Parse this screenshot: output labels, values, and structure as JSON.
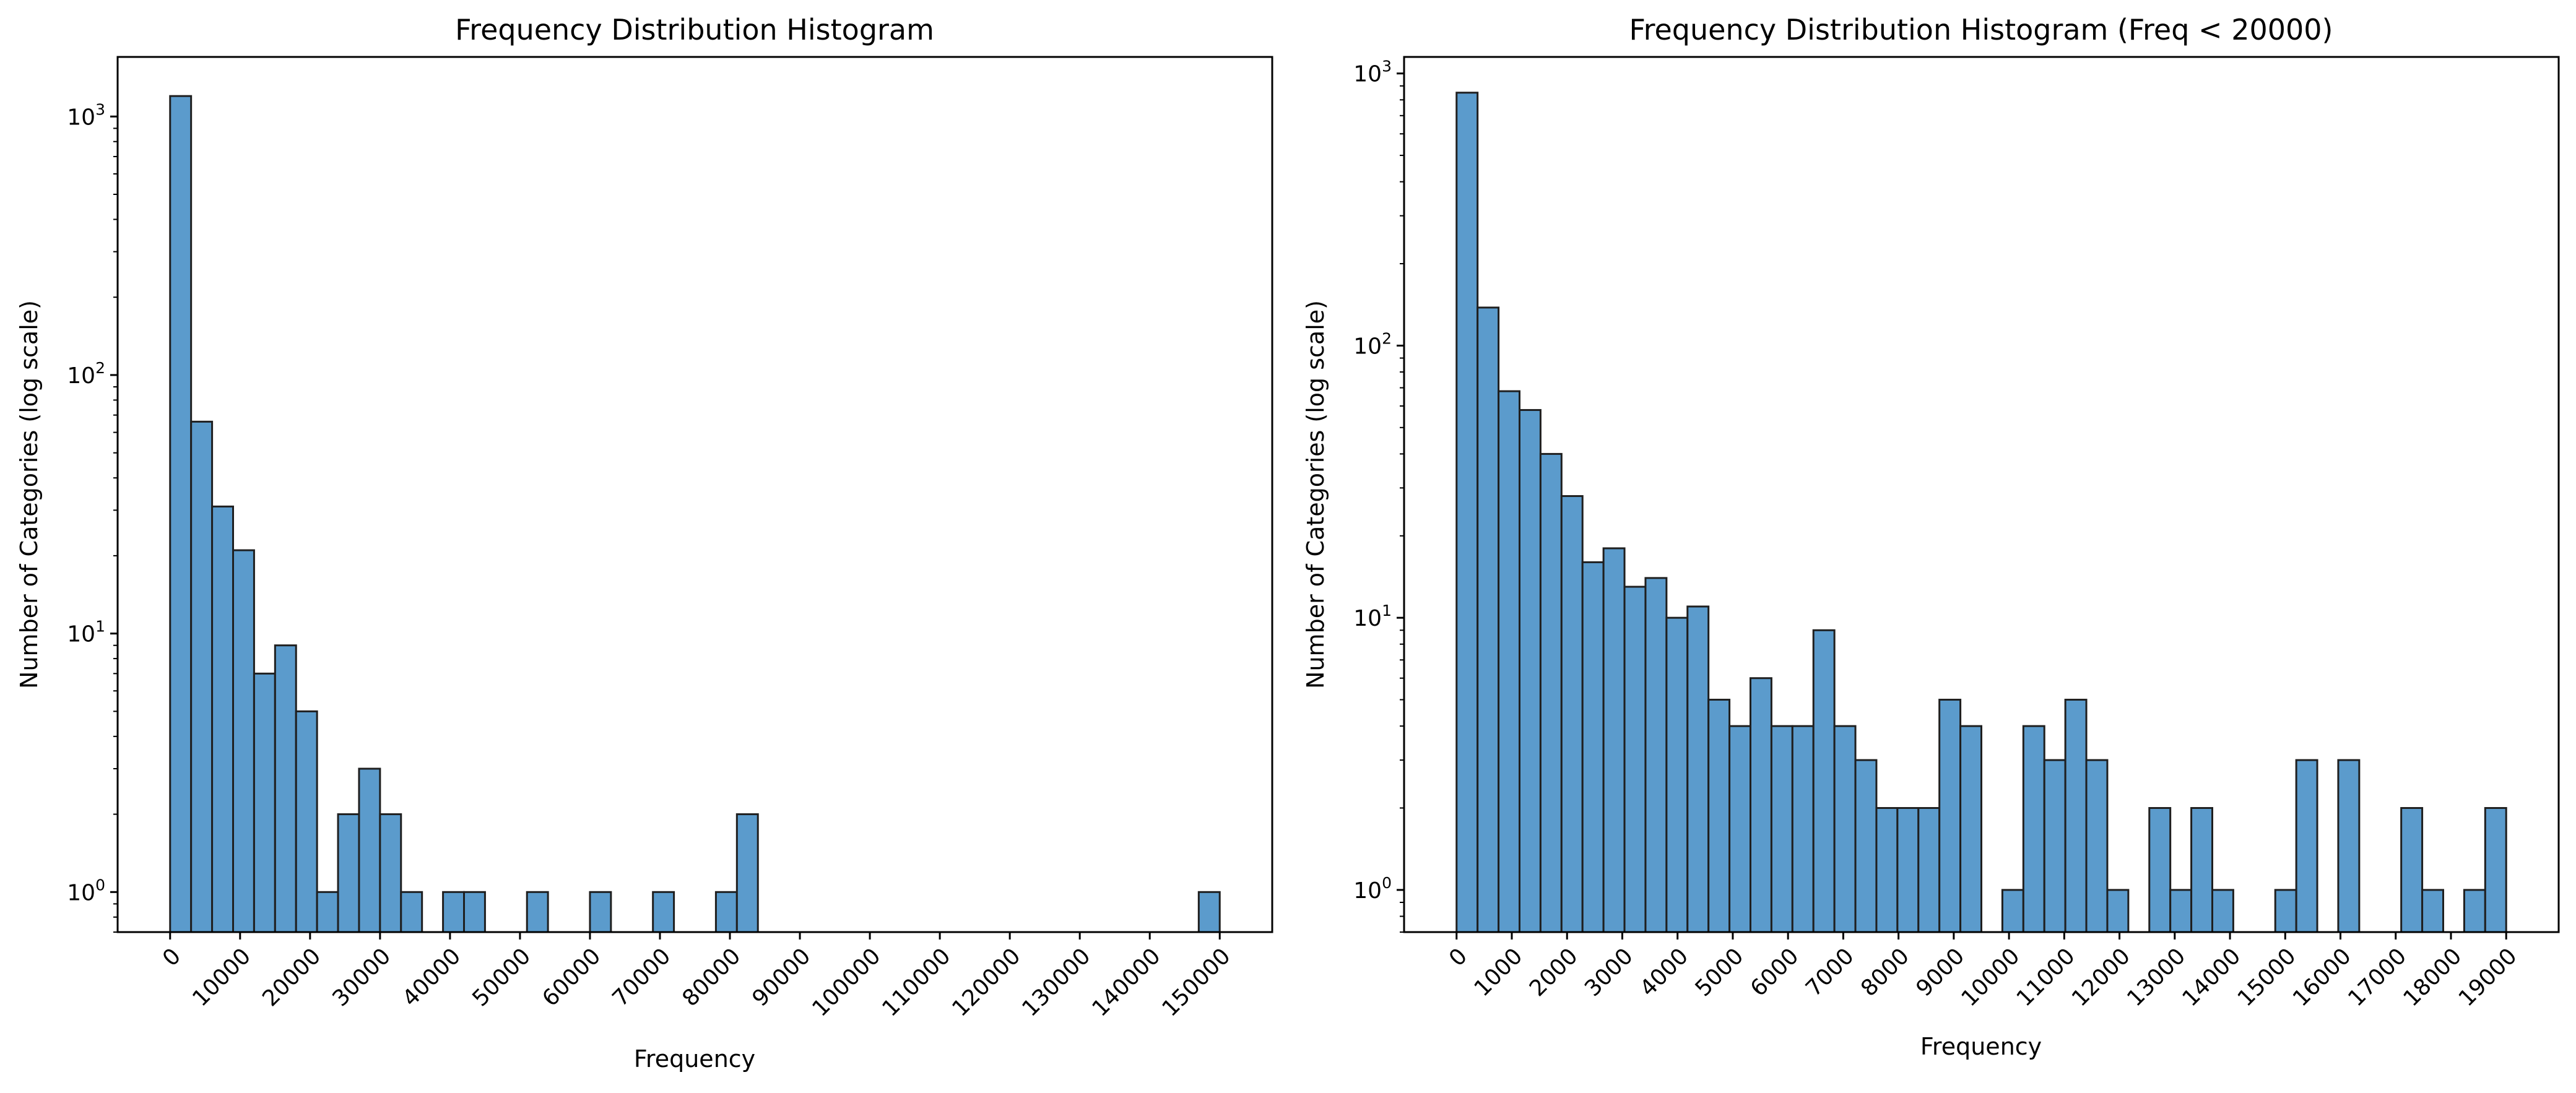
{
  "colors": {
    "bar_fill": "#5b9bcc",
    "bar_edge": "#1f1f1f",
    "axes": "#000000",
    "background": "#ffffff"
  },
  "chart_data": [
    {
      "type": "bar",
      "title": "Frequency Distribution Histogram",
      "xlabel": "Frequency",
      "ylabel": "Number of Categories (log scale)",
      "yscale": "log",
      "ylim": [
        0.7,
        1700
      ],
      "xlim": [
        -7500,
        157500
      ],
      "grid": false,
      "legend": "none",
      "bin_width": 3000,
      "x_ticks": [
        0,
        10000,
        20000,
        30000,
        40000,
        50000,
        60000,
        70000,
        80000,
        90000,
        100000,
        110000,
        120000,
        130000,
        140000,
        150000
      ],
      "x_tick_labels": [
        "0",
        "10000",
        "20000",
        "30000",
        "40000",
        "50000",
        "60000",
        "70000",
        "80000",
        "90000",
        "100000",
        "110000",
        "120000",
        "130000",
        "140000",
        "150000"
      ],
      "y_ticks": [
        1,
        10,
        100,
        1000
      ],
      "y_tick_labels": [
        {
          "base": "10",
          "exp": "0"
        },
        {
          "base": "10",
          "exp": "1"
        },
        {
          "base": "10",
          "exp": "2"
        },
        {
          "base": "10",
          "exp": "3"
        }
      ],
      "bins": [
        {
          "x": 0,
          "count": 1200
        },
        {
          "x": 3000,
          "count": 66
        },
        {
          "x": 6000,
          "count": 31
        },
        {
          "x": 9000,
          "count": 21
        },
        {
          "x": 12000,
          "count": 7
        },
        {
          "x": 15000,
          "count": 9
        },
        {
          "x": 18000,
          "count": 5
        },
        {
          "x": 21000,
          "count": 1
        },
        {
          "x": 24000,
          "count": 2
        },
        {
          "x": 27000,
          "count": 3
        },
        {
          "x": 30000,
          "count": 2
        },
        {
          "x": 33000,
          "count": 1
        },
        {
          "x": 39000,
          "count": 1
        },
        {
          "x": 42000,
          "count": 1
        },
        {
          "x": 51000,
          "count": 1
        },
        {
          "x": 60000,
          "count": 1
        },
        {
          "x": 69000,
          "count": 1
        },
        {
          "x": 78000,
          "count": 1
        },
        {
          "x": 81000,
          "count": 2
        },
        {
          "x": 147000,
          "count": 1
        }
      ]
    },
    {
      "type": "bar",
      "title": "Frequency Distribution Histogram (Freq < 20000)",
      "xlabel": "Frequency",
      "ylabel": "Number of Categories (log scale)",
      "yscale": "log",
      "ylim": [
        0.7,
        1150
      ],
      "xlim": [
        -950,
        19950
      ],
      "grid": false,
      "legend": "none",
      "bin_width": 380,
      "x_ticks": [
        0,
        1000,
        2000,
        3000,
        4000,
        5000,
        6000,
        7000,
        8000,
        9000,
        10000,
        11000,
        12000,
        13000,
        14000,
        15000,
        16000,
        17000,
        18000,
        19000
      ],
      "x_tick_labels": [
        "0",
        "1000",
        "2000",
        "3000",
        "4000",
        "5000",
        "6000",
        "7000",
        "8000",
        "9000",
        "10000",
        "11000",
        "12000",
        "13000",
        "14000",
        "15000",
        "16000",
        "17000",
        "18000",
        "19000"
      ],
      "y_ticks": [
        1,
        10,
        100,
        1000
      ],
      "y_tick_labels": [
        {
          "base": "10",
          "exp": "0"
        },
        {
          "base": "10",
          "exp": "1"
        },
        {
          "base": "10",
          "exp": "2"
        },
        {
          "base": "10",
          "exp": "3"
        }
      ],
      "bins": [
        {
          "x": 0,
          "count": 850
        },
        {
          "x": 380,
          "count": 138
        },
        {
          "x": 760,
          "count": 68
        },
        {
          "x": 1140,
          "count": 58
        },
        {
          "x": 1520,
          "count": 40
        },
        {
          "x": 1900,
          "count": 28
        },
        {
          "x": 2280,
          "count": 16
        },
        {
          "x": 2660,
          "count": 18
        },
        {
          "x": 3040,
          "count": 13
        },
        {
          "x": 3420,
          "count": 14
        },
        {
          "x": 3800,
          "count": 10
        },
        {
          "x": 4180,
          "count": 11
        },
        {
          "x": 4560,
          "count": 5
        },
        {
          "x": 4940,
          "count": 4
        },
        {
          "x": 5320,
          "count": 6
        },
        {
          "x": 5700,
          "count": 4
        },
        {
          "x": 6080,
          "count": 4
        },
        {
          "x": 6460,
          "count": 9
        },
        {
          "x": 6840,
          "count": 4
        },
        {
          "x": 7220,
          "count": 3
        },
        {
          "x": 7600,
          "count": 2
        },
        {
          "x": 7980,
          "count": 2
        },
        {
          "x": 8360,
          "count": 2
        },
        {
          "x": 8740,
          "count": 5
        },
        {
          "x": 9120,
          "count": 4
        },
        {
          "x": 9880,
          "count": 1
        },
        {
          "x": 10260,
          "count": 4
        },
        {
          "x": 10640,
          "count": 3
        },
        {
          "x": 11020,
          "count": 5
        },
        {
          "x": 11400,
          "count": 3
        },
        {
          "x": 11780,
          "count": 1
        },
        {
          "x": 12540,
          "count": 2
        },
        {
          "x": 12920,
          "count": 1
        },
        {
          "x": 13300,
          "count": 2
        },
        {
          "x": 13680,
          "count": 1
        },
        {
          "x": 14820,
          "count": 1
        },
        {
          "x": 15200,
          "count": 3
        },
        {
          "x": 15960,
          "count": 3
        },
        {
          "x": 17100,
          "count": 2
        },
        {
          "x": 17480,
          "count": 1
        },
        {
          "x": 18240,
          "count": 1
        },
        {
          "x": 18620,
          "count": 2
        }
      ]
    }
  ]
}
